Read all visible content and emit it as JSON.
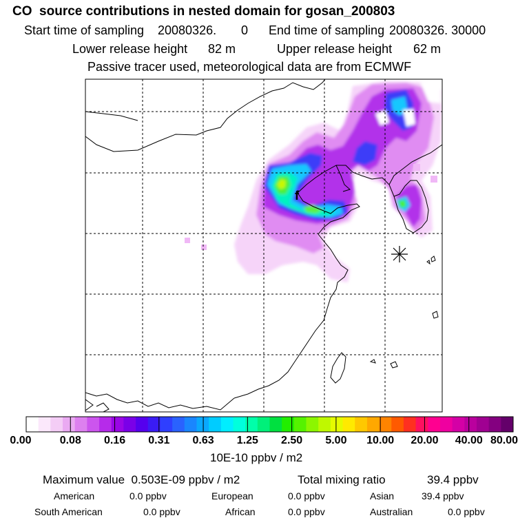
{
  "title": "CO  source contributions in nested domain for gosan_200803",
  "sampling": {
    "start_label": "Start time of sampling",
    "start_value": "20080326.",
    "start_hour": "0",
    "end_label": "End time of sampling",
    "end_value": "20080326. 30000"
  },
  "release": {
    "lower_label": "Lower release height",
    "lower_value": "82 m",
    "upper_label": "Upper release height",
    "upper_value": "62 m"
  },
  "tracer_note": "Passive tracer used, meteorological data are from ECMWF",
  "colorbar": {
    "labels": [
      "0.00",
      "0.08",
      "0.16",
      "0.31",
      "0.63",
      "1.25",
      "2.50",
      "5.00",
      "10.00",
      "20.00",
      "40.00",
      "80.00"
    ],
    "units": "10E-10 ppbv / m2",
    "colors": [
      "#ffffff",
      "#fbe8fb",
      "#f4cdf6",
      "#eaaaf2",
      "#dd80ef",
      "#cc55ee",
      "#b62bea",
      "#9a06e6",
      "#7a00e8",
      "#5500ee",
      "#3a1cf5",
      "#2f3fff",
      "#2a62fe",
      "#1a86fe",
      "#0aa8fe",
      "#00ccff",
      "#00eeff",
      "#00ffdd",
      "#00ffaa",
      "#00f07a",
      "#00e040",
      "#22ee00",
      "#55f200",
      "#8cf600",
      "#bff800",
      "#e5fb00",
      "#ffea00",
      "#ffc800",
      "#ffa800",
      "#ff8400",
      "#ff5a00",
      "#ff3020",
      "#ff1060",
      "#ff0090",
      "#ef00a0",
      "#d400a6",
      "#ba009e",
      "#a00092",
      "#840080",
      "#64006a"
    ]
  },
  "summary": {
    "max_label": "Maximum value",
    "max_value": "0.503E-09 ppbv / m2",
    "total_label": "Total mixing ratio",
    "total_value": "39.4 ppbv"
  },
  "regions": [
    {
      "name": "American",
      "value": "0.0 ppbv"
    },
    {
      "name": "European",
      "value": "0.0 ppbv"
    },
    {
      "name": "Asian",
      "value": "39.4 ppbv"
    },
    {
      "name": "South American",
      "value": "0.0 ppbv"
    },
    {
      "name": "African",
      "value": "0.0 ppbv"
    },
    {
      "name": "Australian",
      "value": "0.0 ppbv"
    }
  ],
  "map": {
    "receptor_marker": "asterisk-marker",
    "plume_colors": {
      "light": "#f3c6f7",
      "mid": "#dc80f0",
      "purple": "#b030ea",
      "blue": "#3c3cf8",
      "cyan": "#18c8fe",
      "teal": "#00ffcc",
      "green": "#40ef30",
      "yellow": "#c8f800"
    }
  }
}
